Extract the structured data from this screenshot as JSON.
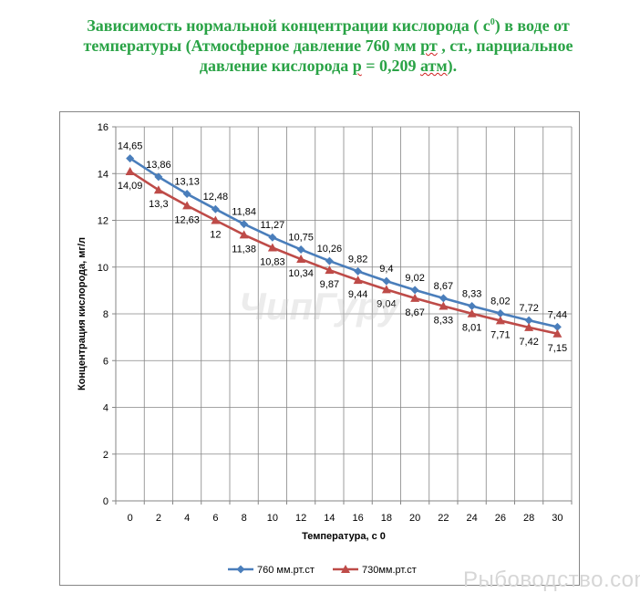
{
  "header": {
    "line1_a": "Зависимость нормальной концентрации кислорода ( с",
    "line1_sub": "0",
    "line1_b": ") в воде от",
    "line2_a": "температуры (Атмосферное давление 760  мм ",
    "line2_wavy": "рт",
    "line2_b": " , ст., парциальное",
    "line3_a": "давление кислорода ",
    "line3_wavy1": "р",
    "line3_b": " = 0,209 ",
    "line3_wavy2": "атм",
    "line3_c": ")."
  },
  "watermarks": {
    "center": "ЧипГуру",
    "corner": "Рыбоводство.com"
  },
  "chart_data": {
    "type": "line",
    "title": "",
    "xlabel": "Температура, с 0",
    "ylabel": "Концентрация  кислорода,  мг/л",
    "ylim": [
      0,
      16
    ],
    "ystep": 2,
    "grid": true,
    "legend_position": "bottom",
    "x": [
      0,
      2,
      4,
      6,
      8,
      10,
      12,
      14,
      16,
      18,
      20,
      22,
      24,
      26,
      28,
      30
    ],
    "series": [
      {
        "name": "760 мм.рт.ст",
        "color": "#4a7ebb",
        "marker": "diamond",
        "label_position": "above",
        "values": [
          14.65,
          13.86,
          13.13,
          12.48,
          11.84,
          11.27,
          10.75,
          10.26,
          9.82,
          9.4,
          9.02,
          8.67,
          8.33,
          8.02,
          7.72,
          7.44
        ],
        "labels": [
          "14,65",
          "13,86",
          "13,13",
          "12,48",
          "11,84",
          "11,27",
          "10,75",
          "10,26",
          "9,82",
          "9,4",
          "9,02",
          "8,67",
          "8,33",
          "8,02",
          "7,72",
          "7,44"
        ]
      },
      {
        "name": "730мм.рт.ст",
        "color": "#be4b48",
        "marker": "triangle",
        "label_position": "below",
        "values": [
          14.09,
          13.3,
          12.63,
          12.0,
          11.38,
          10.83,
          10.34,
          9.87,
          9.44,
          9.04,
          8.67,
          8.33,
          8.01,
          7.71,
          7.42,
          7.15
        ],
        "labels": [
          "14,09",
          "13,3",
          "12,63",
          "12",
          "11,38",
          "10,83",
          "10,34",
          "9,87",
          "9,44",
          "9,04",
          "8,67",
          "8,33",
          "8,01",
          "7,71",
          "7,42",
          "7,15"
        ]
      }
    ]
  }
}
